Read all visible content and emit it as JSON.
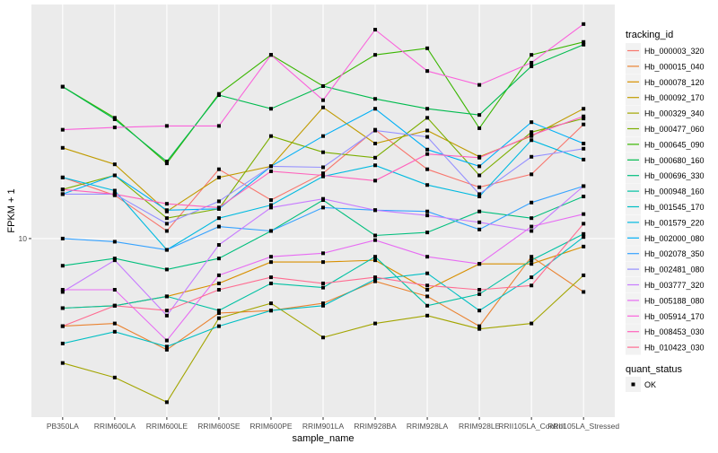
{
  "chart_data": {
    "type": "line",
    "title": "",
    "xlabel": "sample_name",
    "ylabel": "FPKM + 1",
    "y_scale": "log10",
    "ylim": [
      3.18,
      44.9
    ],
    "y_ticks": [
      10
    ],
    "y_tick_labels": [
      "10"
    ],
    "grid": true,
    "categories": [
      "PB350LA",
      "RRIM600LA",
      "RRIM600LE",
      "RRIM600SE",
      "RRIM600PE",
      "RRIM901LA",
      "RRIM928BA",
      "RRIM928LA",
      "RRIM928LE",
      "RRII105LA_Control",
      "RRII105LA_Stressed"
    ],
    "legend": {
      "position": "right",
      "color_title": "tracking_id",
      "shape_title": "quant_status",
      "shape_entries": [
        "OK"
      ]
    },
    "series": [
      {
        "name": "Hb_000003_320",
        "color": "#F8766D",
        "values": [
          14.8,
          13.2,
          10.5,
          15.6,
          12.8,
          15.2,
          20.1,
          15.6,
          13.9,
          15.1,
          20.8
        ]
      },
      {
        "name": "Hb_000015_040",
        "color": "#EA8331",
        "values": [
          5.7,
          5.8,
          4.9,
          6.2,
          6.3,
          6.6,
          7.6,
          6.9,
          5.7,
          8.9,
          7.1
        ]
      },
      {
        "name": "Hb_000078_120",
        "color": "#D89000",
        "values": [
          6.4,
          6.5,
          6.9,
          7.5,
          8.6,
          8.6,
          8.7,
          7.2,
          8.5,
          8.5,
          9.5
        ]
      },
      {
        "name": "Hb_000092_170",
        "color": "#C09B00",
        "values": [
          17.9,
          16.1,
          11.9,
          14.8,
          15.9,
          23.2,
          18.4,
          20.0,
          16.9,
          19.3,
          23.0
        ]
      },
      {
        "name": "Hb_000329_340",
        "color": "#A3A500",
        "values": [
          4.5,
          4.1,
          3.5,
          6.0,
          6.6,
          5.3,
          5.8,
          6.1,
          5.6,
          5.8,
          7.9
        ]
      },
      {
        "name": "Hb_000477_060",
        "color": "#7CAE00",
        "values": [
          13.7,
          15.0,
          11.4,
          12.1,
          19.3,
          17.4,
          16.8,
          21.7,
          15.0,
          19.8,
          21.6
        ]
      },
      {
        "name": "Hb_000645_090",
        "color": "#39B600",
        "values": [
          26.5,
          21.7,
          16.2,
          25.3,
          32.5,
          26.6,
          32.5,
          33.9,
          20.3,
          32.5,
          35.3
        ]
      },
      {
        "name": "Hb_000680_160",
        "color": "#00BB4E",
        "values": [
          26.5,
          21.5,
          16.4,
          25.1,
          23.0,
          26.6,
          24.5,
          23.0,
          22.1,
          30.2,
          34.7
        ]
      },
      {
        "name": "Hb_000696_330",
        "color": "#00BF7D",
        "values": [
          8.4,
          8.8,
          8.2,
          8.8,
          10.5,
          12.8,
          10.2,
          10.4,
          11.9,
          11.4,
          13.1
        ]
      },
      {
        "name": "Hb_000948_160",
        "color": "#00C1A3",
        "values": [
          6.4,
          6.5,
          6.9,
          6.3,
          7.5,
          7.3,
          8.9,
          6.5,
          7.0,
          8.7,
          10.3
        ]
      },
      {
        "name": "Hb_001545_170",
        "color": "#00BFC4",
        "values": [
          5.1,
          5.5,
          5.0,
          5.7,
          6.3,
          6.5,
          7.7,
          8.0,
          6.3,
          7.8,
          10.1
        ]
      },
      {
        "name": "Hb_001579_220",
        "color": "#00BAE0",
        "values": [
          14.8,
          13.6,
          9.3,
          11.4,
          12.4,
          14.9,
          16.0,
          14.1,
          13.1,
          18.8,
          16.6
        ]
      },
      {
        "name": "Hb_002000_080",
        "color": "#00B0F6",
        "values": [
          13.3,
          15.0,
          12.0,
          12.1,
          15.9,
          19.3,
          23.0,
          17.7,
          15.9,
          21.1,
          18.4
        ]
      },
      {
        "name": "Hb_002078_350",
        "color": "#35A2FF",
        "values": [
          10.0,
          9.8,
          9.3,
          10.8,
          10.5,
          12.2,
          12.0,
          11.9,
          10.6,
          12.6,
          14.0
        ]
      },
      {
        "name": "Hb_002481_080",
        "color": "#9590FF",
        "values": [
          13.3,
          13.3,
          11.0,
          12.7,
          15.9,
          15.8,
          20.0,
          19.2,
          13.3,
          16.9,
          17.8
        ]
      },
      {
        "name": "Hb_003777_320",
        "color": "#C77CFF",
        "values": [
          7.1,
          8.7,
          6.1,
          9.6,
          12.2,
          12.9,
          12.0,
          11.6,
          11.1,
          10.5,
          14.0
        ]
      },
      {
        "name": "Hb_005188_080",
        "color": "#E76BF3",
        "values": [
          7.2,
          7.2,
          5.2,
          7.9,
          8.9,
          9.1,
          9.9,
          8.9,
          8.5,
          10.8,
          11.7
        ]
      },
      {
        "name": "Hb_005914_170",
        "color": "#FA62DB",
        "values": [
          20.1,
          20.4,
          20.6,
          20.6,
          32.5,
          24.3,
          38.2,
          29.3,
          26.8,
          30.9,
          39.6
        ]
      },
      {
        "name": "Hb_008453_030",
        "color": "#FF62BC",
        "values": [
          13.7,
          13.3,
          12.5,
          12.2,
          15.4,
          15.0,
          14.5,
          17.2,
          16.8,
          19.4,
          21.9
        ]
      },
      {
        "name": "Hb_010423_030",
        "color": "#FF6C91",
        "values": [
          5.7,
          6.5,
          6.3,
          7.2,
          7.8,
          7.5,
          7.8,
          7.4,
          7.2,
          7.4,
          11.0
        ]
      }
    ]
  }
}
